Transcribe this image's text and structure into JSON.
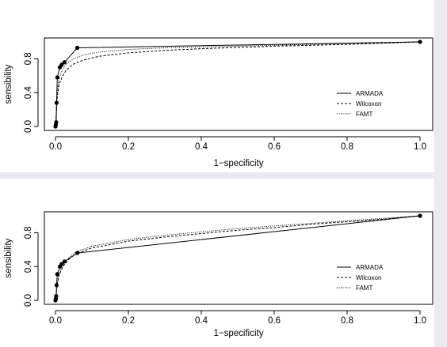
{
  "chart_data": [
    {
      "type": "line",
      "xlabel": "1−specificity",
      "ylabel": "sensibility",
      "xlim": [
        0,
        1
      ],
      "ylim": [
        0,
        1
      ],
      "xticks": [
        "0.0",
        "0.2",
        "0.4",
        "0.6",
        "0.8",
        "1.0"
      ],
      "yticks": [
        "0.0",
        "0.4",
        "0.8"
      ],
      "grid": false,
      "legend_position": "bottom-right",
      "series": [
        {
          "name": "ARMADA",
          "line": "solid",
          "markers": true,
          "x": [
            0,
            0.001,
            0.002,
            0.003,
            0.005,
            0.012,
            0.017,
            0.025,
            0.06,
            1.0
          ],
          "y": [
            0,
            0.02,
            0.05,
            0.28,
            0.58,
            0.7,
            0.73,
            0.76,
            0.93,
            1.0
          ]
        },
        {
          "name": "Wilcoxon",
          "line": "dashed",
          "markers": false,
          "x": [
            0,
            0.005,
            0.01,
            0.02,
            0.03,
            0.05,
            0.08,
            0.12,
            0.2,
            0.3,
            0.4,
            0.6,
            0.8,
            1.0
          ],
          "y": [
            0,
            0.35,
            0.5,
            0.6,
            0.67,
            0.74,
            0.79,
            0.83,
            0.87,
            0.9,
            0.92,
            0.95,
            0.97,
            1.0
          ]
        },
        {
          "name": "FAMT",
          "line": "dotted",
          "markers": false,
          "x": [
            0,
            0.005,
            0.01,
            0.02,
            0.03,
            0.05,
            0.08,
            0.12,
            0.2,
            0.3,
            0.4,
            0.6,
            0.8,
            1.0
          ],
          "y": [
            0,
            0.42,
            0.57,
            0.68,
            0.74,
            0.8,
            0.85,
            0.88,
            0.91,
            0.93,
            0.94,
            0.96,
            0.98,
            1.0
          ]
        }
      ]
    },
    {
      "type": "line",
      "xlabel": "1−specificity",
      "ylabel": "sensibility",
      "xlim": [
        0,
        1
      ],
      "ylim": [
        0,
        1
      ],
      "xticks": [
        "0.0",
        "0.2",
        "0.4",
        "0.6",
        "0.8",
        "1.0"
      ],
      "yticks": [
        "0.0",
        "0.4",
        "0.8"
      ],
      "grid": false,
      "legend_position": "bottom-right",
      "series": [
        {
          "name": "ARMADA",
          "line": "solid",
          "markers": true,
          "x": [
            0,
            0.001,
            0.002,
            0.003,
            0.005,
            0.012,
            0.017,
            0.025,
            0.06,
            1.0
          ],
          "y": [
            0,
            0.02,
            0.05,
            0.18,
            0.31,
            0.4,
            0.43,
            0.46,
            0.56,
            1.0
          ]
        },
        {
          "name": "Wilcoxon",
          "line": "dashed",
          "markers": false,
          "x": [
            0,
            0.005,
            0.01,
            0.02,
            0.04,
            0.06,
            0.1,
            0.2,
            0.3,
            0.4,
            0.5,
            0.6,
            0.7,
            0.8,
            0.9,
            1.0
          ],
          "y": [
            0,
            0.2,
            0.3,
            0.4,
            0.5,
            0.56,
            0.62,
            0.7,
            0.75,
            0.79,
            0.83,
            0.86,
            0.9,
            0.93,
            0.96,
            1.0
          ]
        },
        {
          "name": "FAMT",
          "line": "dotted",
          "markers": false,
          "x": [
            0,
            0.005,
            0.01,
            0.02,
            0.04,
            0.06,
            0.1,
            0.2,
            0.3,
            0.4,
            0.5,
            0.6,
            0.7,
            0.8,
            0.9,
            1.0
          ],
          "y": [
            0,
            0.21,
            0.32,
            0.42,
            0.52,
            0.58,
            0.64,
            0.72,
            0.77,
            0.81,
            0.85,
            0.88,
            0.91,
            0.94,
            0.97,
            1.0
          ]
        }
      ]
    }
  ]
}
